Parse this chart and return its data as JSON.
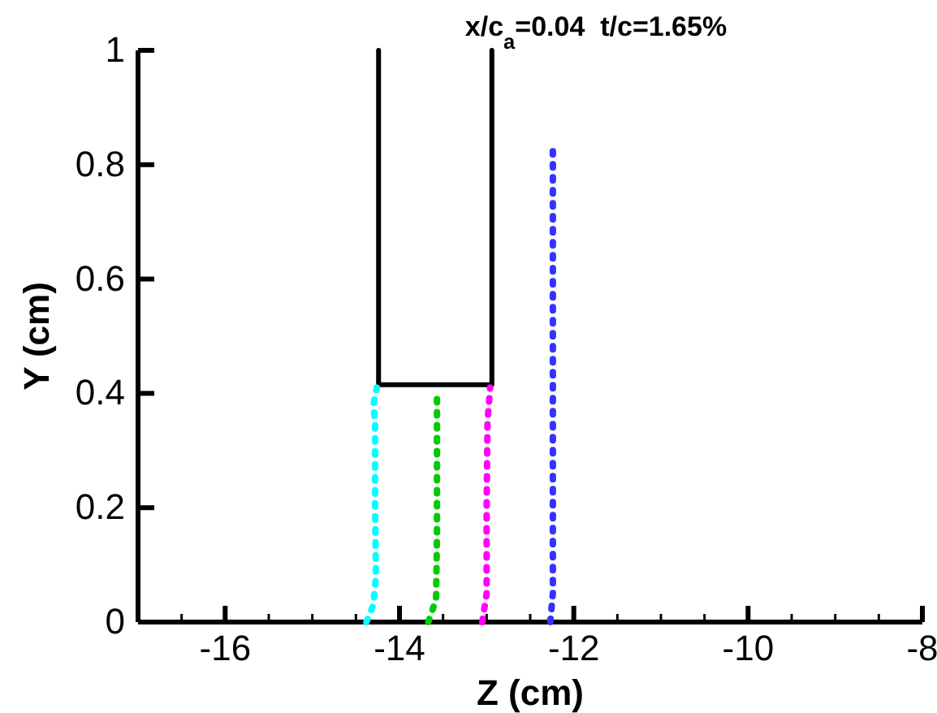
{
  "chart_data": {
    "type": "line",
    "title": "x/c$_{a}$=0.04  t/c=1.65%",
    "xlabel": "Z (cm)",
    "ylabel": "Y (cm)",
    "xlim": [
      -17,
      -8
    ],
    "ylim": [
      0,
      1
    ],
    "xticks": [
      {
        "value": -16.5,
        "label": null
      },
      -16,
      {
        "value": -15.5,
        "label": null
      },
      {
        "value": -15,
        "label": null
      },
      {
        "value": -14.5,
        "label": null
      },
      -14,
      {
        "value": -13.5,
        "label": null
      },
      {
        "value": -13,
        "label": null
      },
      {
        "value": -12.5,
        "label": null
      },
      -12,
      {
        "value": -11.5,
        "label": null
      },
      {
        "value": -11,
        "label": null
      },
      {
        "value": -10.5,
        "label": null
      },
      -10,
      {
        "value": -9.5,
        "label": null
      },
      {
        "value": -9,
        "label": null
      },
      {
        "value": -8.5,
        "label": null
      },
      -8
    ],
    "yticks": [
      0,
      0.2,
      0.4,
      0.6,
      0.8,
      1
    ],
    "grid": false,
    "marker": "none",
    "series": [
      {
        "color": "#000000",
        "line_style": "solid",
        "x": [
          -14.24,
          -14.24,
          -12.94,
          -12.94
        ],
        "values": [
          1,
          0.415,
          0.415,
          1
        ]
      },
      {
        "color": "#00ffff",
        "line_style": "dotted",
        "x": [
          -14.38,
          -14.3,
          -14.27,
          -14.28,
          -14.28,
          -14.3,
          -14.26
        ],
        "values": [
          0,
          0.03,
          0.08,
          0.2,
          0.35,
          0.38,
          0.41
        ]
      },
      {
        "color": "#00cc00",
        "line_style": "dotted",
        "x": [
          -13.67,
          -13.58,
          -13.57,
          -13.57,
          -13.57
        ],
        "values": [
          0,
          0.04,
          0.15,
          0.3,
          0.39
        ]
      },
      {
        "color": "#ff00ff",
        "line_style": "dotted",
        "x": [
          -13.05,
          -13.0,
          -13.0,
          -12.99,
          -12.96
        ],
        "values": [
          0,
          0.05,
          0.2,
          0.35,
          0.41
        ]
      },
      {
        "color": "#3333ff",
        "line_style": "dotted",
        "x": [
          -12.27,
          -12.24,
          -12.24,
          -12.24,
          -12.24
        ],
        "values": [
          0,
          0.05,
          0.3,
          0.6,
          0.84
        ]
      }
    ]
  }
}
